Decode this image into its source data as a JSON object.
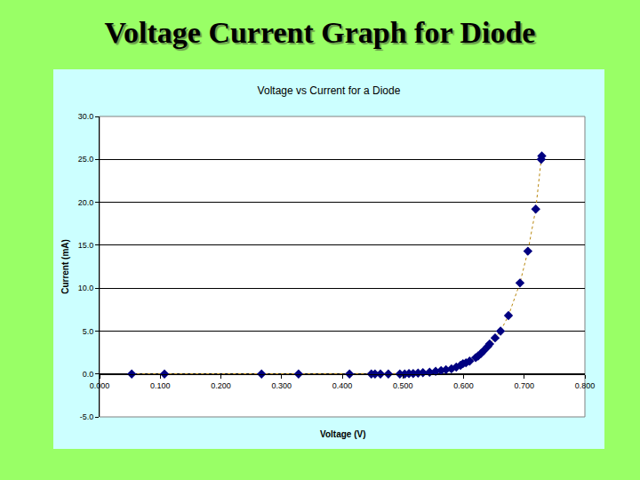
{
  "heading": "Voltage Current Graph for Diode",
  "chart_data": {
    "type": "scatter",
    "title": "Voltage vs Current for a Diode",
    "x_label": "Voltage (V)",
    "y_label": "Current (mA)",
    "series": [
      {
        "name": "Current",
        "color": "#000080",
        "marker": "diamond",
        "line_style": "dot",
        "x": [
          0.053,
          0.107,
          0.267,
          0.328,
          0.412,
          0.448,
          0.454,
          0.463,
          0.476,
          0.495,
          0.503,
          0.51,
          0.517,
          0.525,
          0.533,
          0.544,
          0.554,
          0.563,
          0.571,
          0.58,
          0.588,
          0.595,
          0.599,
          0.604,
          0.61,
          0.62,
          0.624,
          0.629,
          0.633,
          0.64,
          0.643,
          0.652,
          0.661,
          0.674,
          0.693,
          0.706,
          0.719,
          0.728,
          0.729
        ],
        "values": [
          0.0,
          0.0,
          0.0,
          0.0,
          0.0,
          0.0,
          0.0,
          0.0,
          0.0,
          0.0,
          0.0,
          0.05,
          0.05,
          0.1,
          0.15,
          0.2,
          0.3,
          0.4,
          0.5,
          0.6,
          0.8,
          1.0,
          1.2,
          1.3,
          1.5,
          1.9,
          2.1,
          2.4,
          2.7,
          3.2,
          3.5,
          4.2,
          5.0,
          6.8,
          10.6,
          14.3,
          19.2,
          25.0,
          25.4
        ]
      }
    ],
    "xlim": [
      0,
      0.8
    ],
    "xticks": [
      {
        "value": 0,
        "label": "0.000"
      },
      {
        "value": 0.1,
        "label": "0.100"
      },
      {
        "value": 0.2,
        "label": "0.200"
      },
      {
        "value": 0.3,
        "label": "0.300"
      },
      {
        "value": 0.4,
        "label": "0.400"
      },
      {
        "value": 0.5,
        "label": "0.500"
      },
      {
        "value": 0.6,
        "label": "0.600"
      },
      {
        "value": 0.7,
        "label": "0.700"
      },
      {
        "value": 0.8,
        "label": "0.800"
      }
    ],
    "ylim": [
      -5,
      30
    ],
    "yticks": [
      {
        "value": -5,
        "label": "-5.0"
      },
      {
        "value": 0,
        "label": "0.0"
      },
      {
        "value": 5,
        "label": "5.0"
      },
      {
        "value": 10,
        "label": "10.0"
      },
      {
        "value": 15,
        "label": "15.0"
      },
      {
        "value": 20,
        "label": "20.0"
      },
      {
        "value": 25,
        "label": "25.0"
      },
      {
        "value": 30,
        "label": "30.0"
      }
    ],
    "grid": true
  }
}
